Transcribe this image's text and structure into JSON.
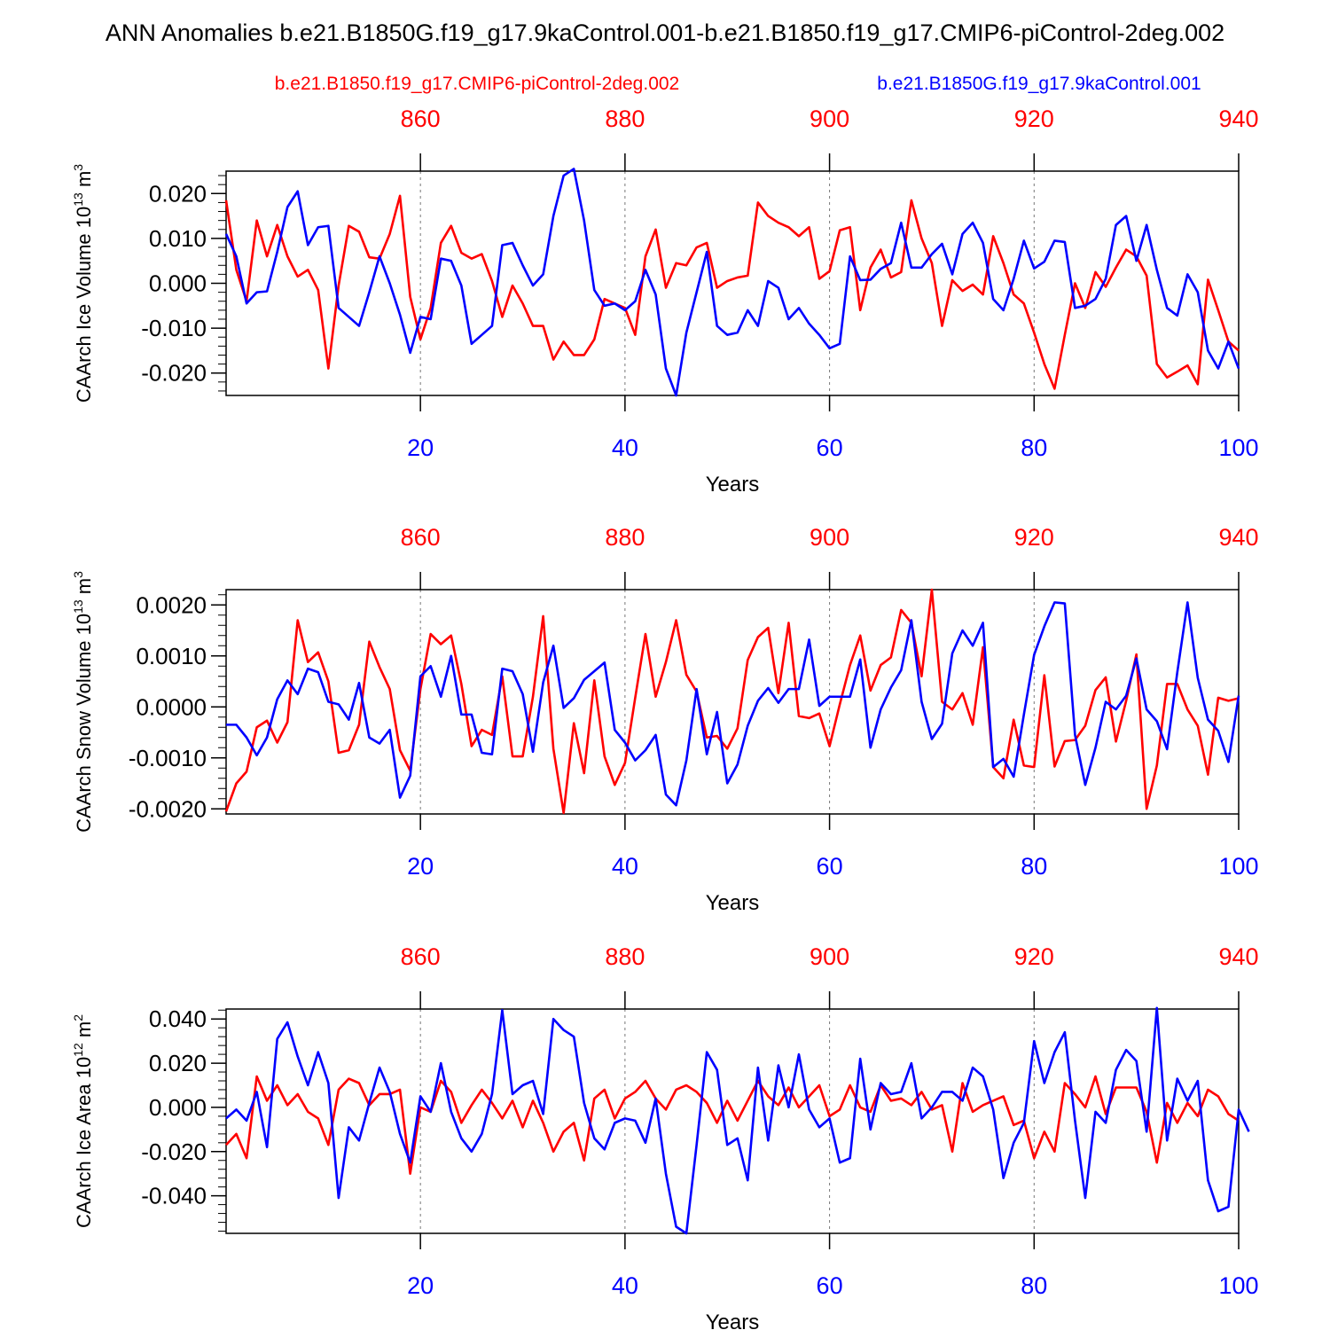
{
  "title": "ANN Anomalies b.e21.B1850G.f19_g17.9kaControl.001-b.e21.B1850.f19_g17.CMIP6-piControl-2deg.002",
  "legend": {
    "red_label": "b.e21.B1850.f19_g17.CMIP6-piControl-2deg.002",
    "blue_label": "b.e21.B1850G.f19_g17.9kaControl.001"
  },
  "colors": {
    "red": "#ff0000",
    "blue": "#0000ff"
  },
  "chart_data": [
    {
      "type": "line",
      "name": "ice-volume",
      "ylabel": "CAArch Ice Volume 10^13 m^3",
      "ylabel_base": "CAArch Ice Volume 10",
      "ylabel_exp1": "13",
      "ylabel_mid": " m",
      "ylabel_exp2": "3",
      "xlabel": "Years",
      "ylim": [
        -0.025,
        0.025
      ],
      "xlim": [
        1,
        100
      ],
      "yticks": [
        -0.02,
        -0.01,
        0.0,
        0.01,
        0.02
      ],
      "ytick_labels": [
        "-0.020",
        "-0.010",
        "0.000",
        "0.010",
        "0.020"
      ],
      "bottom_ticks": [
        20,
        40,
        60,
        80,
        100
      ],
      "bottom_tick_labels": [
        "20",
        "40",
        "60",
        "80",
        "100"
      ],
      "top_ticks": [
        860,
        880,
        900,
        920,
        940
      ],
      "top_tick_labels": [
        "860",
        "880",
        "900",
        "920",
        "940"
      ],
      "top_offset": 841,
      "series": [
        {
          "name": "b.e21.B1850G.f19_g17.9kaControl.001",
          "color": "blue",
          "values": [
            0.011,
            0.006,
            -0.0045,
            -0.002,
            -0.0018,
            0.007,
            0.017,
            0.0205,
            0.0085,
            0.0125,
            0.0128,
            -0.0055,
            -0.0075,
            -0.0095,
            -0.002,
            0.006,
            0.0,
            -0.007,
            -0.0155,
            -0.0075,
            -0.008,
            0.0055,
            0.005,
            -0.0005,
            -0.0135,
            -0.0115,
            -0.0095,
            0.0085,
            0.009,
            0.004,
            -0.0005,
            0.002,
            0.015,
            0.024,
            0.0255,
            0.014,
            -0.0015,
            -0.005,
            -0.0045,
            -0.006,
            -0.004,
            0.003,
            -0.0025,
            -0.019,
            -0.025,
            -0.011,
            -0.002,
            0.007,
            -0.0095,
            -0.0115,
            -0.011,
            -0.006,
            -0.0095,
            0.0005,
            -0.001,
            -0.008,
            -0.0055,
            -0.009,
            -0.0115,
            -0.0145,
            -0.0135,
            0.006,
            0.0007,
            0.0008,
            0.0032,
            0.0045,
            0.0135,
            0.0035,
            0.0035,
            0.0065,
            0.0088,
            0.002,
            0.011,
            0.0135,
            0.009,
            -0.0035,
            -0.006,
            0.001,
            0.0095,
            0.0033,
            0.0048,
            0.0095,
            0.0092,
            -0.0055,
            -0.005,
            -0.0035,
            0.001,
            0.013,
            0.015,
            0.005,
            0.013,
            0.003,
            -0.0055,
            -0.0072,
            0.002,
            -0.002,
            -0.015,
            -0.019,
            -0.013,
            -0.019
          ]
        },
        {
          "name": "b.e21.B1850.f19_g17.CMIP6-piControl-2deg.002",
          "color": "red",
          "values": [
            0.0185,
            0.003,
            -0.004,
            0.014,
            0.006,
            0.013,
            0.006,
            0.0015,
            0.003,
            -0.0015,
            -0.019,
            -0.0005,
            0.0128,
            0.0115,
            0.0058,
            0.0055,
            0.011,
            0.0195,
            -0.003,
            -0.0125,
            -0.0055,
            0.009,
            0.0128,
            0.0068,
            0.0055,
            0.0065,
            0.0005,
            -0.0075,
            -0.0005,
            -0.0045,
            -0.0095,
            -0.0095,
            -0.017,
            -0.013,
            -0.016,
            -0.016,
            -0.0125,
            -0.0035,
            -0.0045,
            -0.0055,
            -0.0115,
            0.006,
            0.012,
            -0.001,
            0.0045,
            0.004,
            0.008,
            0.009,
            -0.001,
            0.0005,
            0.0013,
            0.0017,
            0.018,
            0.015,
            0.0135,
            0.0125,
            0.0105,
            0.0125,
            0.001,
            0.0027,
            0.0118,
            0.0125,
            -0.006,
            0.0035,
            0.0075,
            0.0013,
            0.0025,
            0.0185,
            0.01,
            0.0045,
            -0.0095,
            0.0007,
            -0.0017,
            -0.0003,
            -0.0025,
            0.0105,
            0.0045,
            -0.0025,
            -0.0045,
            -0.011,
            -0.018,
            -0.0235,
            -0.0115,
            0.0,
            -0.0055,
            0.0025,
            -0.0008,
            0.0035,
            0.0075,
            0.006,
            0.0017,
            -0.018,
            -0.021,
            -0.0197,
            -0.0183,
            -0.0225,
            0.0008,
            -0.006,
            -0.013,
            -0.015
          ]
        }
      ]
    },
    {
      "type": "line",
      "name": "snow-volume",
      "ylabel": "CAArch Snow Volume 10^13 m^3",
      "ylabel_base": "CAArch Snow Volume 10",
      "ylabel_exp1": "13",
      "ylabel_mid": " m",
      "ylabel_exp2": "3",
      "xlabel": "Years",
      "ylim": [
        -0.0021,
        0.0023
      ],
      "xlim": [
        1,
        100
      ],
      "yticks": [
        -0.002,
        -0.001,
        0.0,
        0.001,
        0.002
      ],
      "ytick_labels": [
        "-0.0020",
        "-0.0010",
        "0.0000",
        "0.0010",
        "0.0020"
      ],
      "bottom_ticks": [
        20,
        40,
        60,
        80,
        100
      ],
      "bottom_tick_labels": [
        "20",
        "40",
        "60",
        "80",
        "100"
      ],
      "top_ticks": [
        860,
        880,
        900,
        920,
        940
      ],
      "top_tick_labels": [
        "860",
        "880",
        "900",
        "920",
        "940"
      ],
      "top_offset": 841,
      "series": [
        {
          "name": "b.e21.B1850G.f19_g17.9kaControl.001",
          "color": "blue",
          "values": [
            -0.00035,
            -0.00035,
            -0.0006,
            -0.00095,
            -0.0006,
            0.00015,
            0.00052,
            0.00025,
            0.00075,
            0.00068,
            0.0001,
            5e-05,
            -0.00025,
            0.00047,
            -0.0006,
            -0.00072,
            -0.00045,
            -0.00178,
            -0.00135,
            0.0006,
            0.0008,
            0.0002,
            0.001,
            -0.00015,
            -0.00015,
            -0.0009,
            -0.00093,
            0.00075,
            0.0007,
            0.00025,
            -0.00088,
            0.00048,
            0.0012,
            -2e-05,
            0.00017,
            0.00053,
            0.0007,
            0.00087,
            -0.00045,
            -0.0007,
            -0.00105,
            -0.00085,
            -0.00055,
            -0.00172,
            -0.00193,
            -0.00105,
            0.00035,
            -0.00093,
            -0.0001,
            -0.0015,
            -0.00113,
            -0.00037,
            0.00012,
            0.00037,
            8e-05,
            0.00035,
            0.00035,
            0.00132,
            2e-05,
            0.0002,
            0.0002,
            0.0002,
            0.00093,
            -0.0008,
            -5e-05,
            0.00038,
            0.00072,
            0.0017,
            0.0001,
            -0.00063,
            -0.00033,
            0.00105,
            0.0015,
            0.0012,
            0.00165,
            -0.00118,
            -0.00102,
            -0.00137,
            -0.00015,
            0.00102,
            0.00158,
            0.00205,
            0.00203,
            -0.00055,
            -0.00153,
            -0.0008,
            0.0001,
            -5e-05,
            0.00022,
            0.00095,
            -5e-05,
            -0.00028,
            -0.00083,
            0.00068,
            0.00205,
            0.00057,
            -0.00025,
            -0.00047,
            -0.00108,
            0.00022
          ]
        },
        {
          "name": "b.e21.B1850.f19_g17.CMIP6-piControl-2deg.002",
          "color": "red",
          "values": [
            -0.00205,
            -0.0015,
            -0.00127,
            -0.0004,
            -0.00027,
            -0.0007,
            -0.0003,
            0.0017,
            0.00088,
            0.00107,
            0.0005,
            -0.0009,
            -0.00085,
            -0.00035,
            0.00128,
            0.00078,
            0.00035,
            -0.00085,
            -0.00125,
            0.00035,
            0.00143,
            0.00123,
            0.0014,
            0.00045,
            -0.00077,
            -0.00045,
            -0.00055,
            0.0006,
            -0.00097,
            -0.00097,
            0.0002,
            0.00178,
            -0.00082,
            -0.00208,
            -0.00032,
            -0.0013,
            0.00052,
            -0.00097,
            -0.00153,
            -0.0011,
            0.00018,
            0.00143,
            0.0002,
            0.00088,
            0.0017,
            0.00063,
            0.0003,
            -0.0006,
            -0.00057,
            -0.00082,
            -0.00042,
            0.00092,
            0.00137,
            0.00155,
            0.00027,
            0.00165,
            -0.00018,
            -0.00022,
            -0.00013,
            -0.00077,
            5e-05,
            0.00082,
            0.0014,
            0.00032,
            0.00082,
            0.00097,
            0.0019,
            0.00165,
            0.0006,
            0.0023,
            0.0001,
            -5e-05,
            0.00027,
            -0.00035,
            0.00117,
            -0.00118,
            -0.0014,
            -0.00025,
            -0.00115,
            -0.00118,
            0.00062,
            -0.00117,
            -0.00067,
            -0.00065,
            -0.00037,
            0.00033,
            0.00058,
            -0.00068,
            0.00012,
            0.00103,
            -0.002,
            -0.00115,
            0.00045,
            0.00045,
            -5e-05,
            -0.00037,
            -0.00133,
            0.00018,
            0.00012,
            0.00017
          ]
        }
      ]
    },
    {
      "type": "line",
      "name": "ice-area",
      "ylabel": "CAArch Ice Area 10^12 m^2",
      "ylabel_base": "CAArch Ice Area 10",
      "ylabel_exp1": "12",
      "ylabel_mid": " m",
      "ylabel_exp2": "2",
      "xlabel": "Years",
      "ylim": [
        -0.057,
        0.0445
      ],
      "xlim": [
        1,
        100
      ],
      "yticks": [
        -0.04,
        -0.02,
        0.0,
        0.02,
        0.04
      ],
      "ytick_labels": [
        "-0.040",
        "-0.020",
        "0.000",
        "0.020",
        "0.040"
      ],
      "bottom_ticks": [
        20,
        40,
        60,
        80,
        100
      ],
      "bottom_tick_labels": [
        "20",
        "40",
        "60",
        "80",
        "100"
      ],
      "top_ticks": [
        860,
        880,
        900,
        920,
        940
      ],
      "top_tick_labels": [
        "860",
        "880",
        "900",
        "920",
        "940"
      ],
      "top_offset": 841,
      "series": [
        {
          "name": "b.e21.B1850G.f19_g17.9kaControl.001",
          "color": "blue",
          "values": [
            -0.005,
            -0.001,
            -0.006,
            0.007,
            -0.018,
            0.031,
            0.0385,
            0.023,
            0.01,
            0.025,
            0.011,
            -0.041,
            -0.009,
            -0.015,
            0.002,
            0.018,
            0.007,
            -0.012,
            -0.025,
            0.005,
            -0.002,
            0.02,
            -0.002,
            -0.014,
            -0.02,
            -0.012,
            0.006,
            0.044,
            0.006,
            0.01,
            0.012,
            -0.003,
            0.04,
            0.035,
            0.032,
            0.002,
            -0.014,
            -0.019,
            -0.007,
            -0.005,
            -0.006,
            -0.016,
            0.004,
            -0.03,
            -0.054,
            -0.057,
            -0.017,
            0.025,
            0.017,
            -0.017,
            -0.014,
            -0.033,
            0.018,
            -0.015,
            0.019,
            0.0,
            0.024,
            -0.001,
            -0.009,
            -0.005,
            -0.025,
            -0.023,
            0.022,
            -0.01,
            0.011,
            0.006,
            0.007,
            0.02,
            -0.005,
            0.0,
            0.007,
            0.007,
            0.003,
            0.018,
            0.014,
            -0.001,
            -0.032,
            -0.016,
            -0.007,
            0.03,
            0.011,
            0.025,
            0.034,
            -0.006,
            -0.041,
            -0.002,
            -0.007,
            0.017,
            0.026,
            0.021,
            -0.011,
            0.045,
            -0.015,
            0.013,
            0.003,
            0.012,
            -0.033,
            -0.047,
            -0.045,
            -0.001,
            -0.011
          ]
        },
        {
          "name": "b.e21.B1850.f19_g17.CMIP6-piControl-2deg.002",
          "color": "red",
          "values": [
            -0.017,
            -0.012,
            -0.023,
            0.014,
            0.003,
            0.01,
            0.001,
            0.006,
            -0.002,
            -0.005,
            -0.017,
            0.008,
            0.013,
            0.011,
            0.001,
            0.006,
            0.006,
            0.008,
            -0.03,
            0.0,
            -0.002,
            0.012,
            0.007,
            -0.007,
            0.001,
            0.008,
            0.002,
            -0.005,
            0.003,
            -0.009,
            0.003,
            -0.007,
            -0.02,
            -0.011,
            -0.007,
            -0.024,
            0.004,
            0.008,
            -0.005,
            0.004,
            0.007,
            0.012,
            0.004,
            -0.001,
            0.008,
            0.01,
            0.007,
            0.002,
            -0.007,
            0.003,
            -0.006,
            0.003,
            0.012,
            0.005,
            0.001,
            0.009,
            0.0,
            0.005,
            0.01,
            -0.004,
            -0.001,
            0.01,
            0.0,
            -0.002,
            0.01,
            0.003,
            0.004,
            0.001,
            0.007,
            -0.001,
            0.001,
            -0.02,
            0.011,
            -0.002,
            0.001,
            0.003,
            0.005,
            -0.008,
            -0.006,
            -0.023,
            -0.011,
            -0.02,
            0.011,
            0.006,
            0.0,
            0.014,
            -0.003,
            0.009,
            0.009,
            0.009,
            -0.002,
            -0.025,
            0.002,
            -0.007,
            0.002,
            -0.004,
            0.008,
            0.005,
            -0.003,
            -0.006
          ]
        }
      ]
    }
  ]
}
